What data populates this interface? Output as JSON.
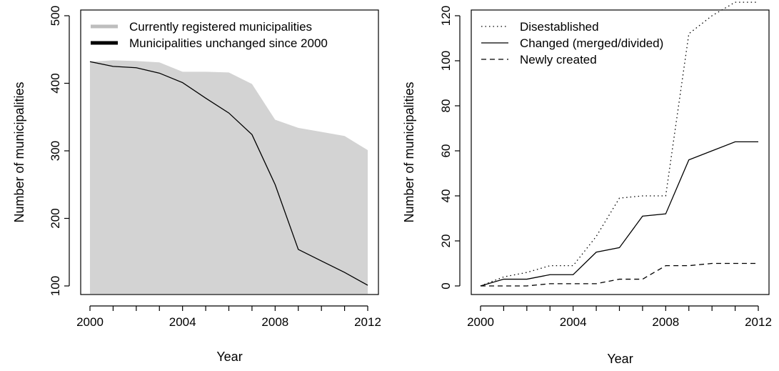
{
  "chart_data": [
    {
      "type": "area",
      "xlabel": "Year",
      "ylabel": "Number of municipalities",
      "xlim": [
        2000,
        2012
      ],
      "ylim": [
        90,
        500
      ],
      "x_ticks": [
        "2000",
        "2004",
        "2008",
        "2012"
      ],
      "y_ticks": [
        "100",
        "200",
        "300",
        "400",
        "500"
      ],
      "legend_position": "top",
      "series": [
        {
          "name": "Currently registered municipalities",
          "render": "area",
          "color": "#d3d3d3",
          "legend_color": "#bebebe",
          "x": [
            2000,
            2001,
            2002,
            2003,
            2004,
            2005,
            2006,
            2007,
            2008,
            2009,
            2010,
            2011,
            2012
          ],
          "values": [
            432,
            434,
            433,
            431,
            417,
            417,
            416,
            399,
            346,
            334,
            328,
            322,
            301
          ]
        },
        {
          "name": "Municipalities unchanged since 2000",
          "render": "line",
          "color": "#000000",
          "x": [
            2000,
            2001,
            2002,
            2003,
            2004,
            2005,
            2006,
            2007,
            2008,
            2009,
            2010,
            2011,
            2012
          ],
          "values": [
            432,
            425,
            423,
            415,
            401,
            378,
            356,
            324,
            250,
            154,
            137,
            120,
            101
          ]
        }
      ]
    },
    {
      "type": "line",
      "xlabel": "Year",
      "ylabel": "Number of municipalities",
      "xlim": [
        2000,
        2012
      ],
      "ylim": [
        -4,
        130
      ],
      "x_ticks": [
        "2000",
        "2004",
        "2008",
        "2012"
      ],
      "y_ticks": [
        "0",
        "20",
        "40",
        "60",
        "80",
        "100",
        "120"
      ],
      "legend_position": "top-left",
      "series": [
        {
          "name": "Disestablished",
          "dash": "dotted",
          "color": "#000000",
          "x": [
            2000,
            2001,
            2002,
            2003,
            2004,
            2005,
            2006,
            2007,
            2008,
            2009,
            2010,
            2011,
            2012
          ],
          "values": [
            0,
            4,
            6,
            9,
            9,
            22,
            39,
            40,
            40,
            112,
            120,
            126,
            126
          ]
        },
        {
          "name": "Changed (merged/divided)",
          "dash": "solid",
          "color": "#000000",
          "x": [
            2000,
            2001,
            2002,
            2003,
            2004,
            2005,
            2006,
            2007,
            2008,
            2009,
            2010,
            2011,
            2012
          ],
          "values": [
            0,
            3,
            3,
            5,
            5,
            15,
            17,
            31,
            32,
            56,
            60,
            64,
            64
          ]
        },
        {
          "name": "Newly created",
          "dash": "dashed",
          "color": "#000000",
          "x": [
            2000,
            2001,
            2002,
            2003,
            2004,
            2005,
            2006,
            2007,
            2008,
            2009,
            2010,
            2011,
            2012
          ],
          "values": [
            0,
            0,
            0,
            1,
            1,
            1,
            3,
            3,
            9,
            9,
            10,
            10,
            10
          ]
        }
      ]
    }
  ]
}
